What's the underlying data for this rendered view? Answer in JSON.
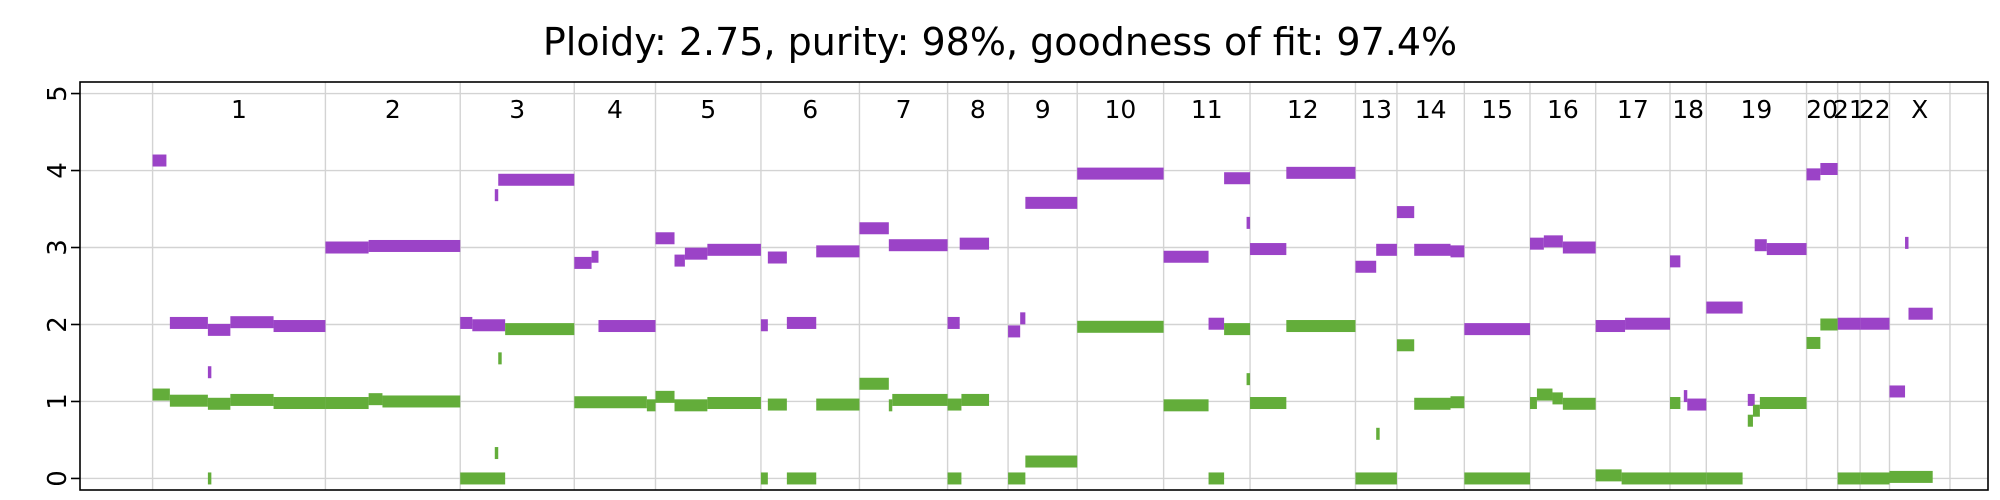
{
  "chart_data": {
    "type": "scatter",
    "title": "Ploidy: 2.75, purity: 98%, goodness of fit: 97.4%",
    "xlabel": "",
    "ylabel": "",
    "ylim": [
      -0.15,
      5.15
    ],
    "yticks": [
      0,
      1,
      2,
      3,
      4,
      5
    ],
    "grid": true,
    "colors": {
      "major": "#9b43c7",
      "minor": "#63ad3a",
      "grid": "#d3d3d3",
      "axis": "#000000"
    },
    "chromosomes": [
      {
        "name": "1",
        "start": 0.0,
        "end": 1.0
      },
      {
        "name": "2",
        "start": 1.0,
        "end": 1.78
      },
      {
        "name": "3",
        "start": 1.78,
        "end": 2.44
      },
      {
        "name": "4",
        "start": 2.44,
        "end": 2.91
      },
      {
        "name": "5",
        "start": 2.91,
        "end": 3.52
      },
      {
        "name": "6",
        "start": 3.52,
        "end": 4.09
      },
      {
        "name": "7",
        "start": 4.09,
        "end": 4.6
      },
      {
        "name": "8",
        "start": 4.6,
        "end": 4.95
      },
      {
        "name": "9",
        "start": 4.95,
        "end": 5.35
      },
      {
        "name": "10",
        "start": 5.35,
        "end": 5.85
      },
      {
        "name": "11",
        "start": 5.85,
        "end": 6.35
      },
      {
        "name": "12",
        "start": 6.35,
        "end": 6.96
      },
      {
        "name": "13",
        "start": 6.96,
        "end": 7.2
      },
      {
        "name": "14",
        "start": 7.2,
        "end": 7.59
      },
      {
        "name": "15",
        "start": 7.59,
        "end": 7.97
      },
      {
        "name": "16",
        "start": 7.97,
        "end": 8.35
      },
      {
        "name": "17",
        "start": 8.35,
        "end": 8.78
      },
      {
        "name": "18",
        "start": 8.78,
        "end": 8.99
      },
      {
        "name": "19",
        "start": 8.99,
        "end": 9.57
      },
      {
        "name": "20",
        "start": 9.57,
        "end": 9.75
      },
      {
        "name": "21",
        "start": 9.75,
        "end": 9.88
      },
      {
        "name": "22",
        "start": 9.88,
        "end": 10.05
      },
      {
        "name": "X",
        "start": 10.05,
        "end": 10.4
      }
    ],
    "xlim": [
      -0.42,
      10.62
    ],
    "series": [
      {
        "key": "major",
        "segments": [
          [
            0.0,
            0.08,
            4.13
          ],
          [
            0.1,
            0.32,
            2.02
          ],
          [
            0.32,
            0.45,
            1.93
          ],
          [
            0.45,
            0.7,
            2.03
          ],
          [
            0.7,
            1.0,
            1.98
          ],
          [
            0.32,
            0.34,
            1.38
          ],
          [
            1.0,
            1.25,
            3.0
          ],
          [
            1.25,
            1.78,
            3.02
          ],
          [
            1.78,
            1.85,
            2.02
          ],
          [
            1.85,
            2.04,
            1.99
          ],
          [
            1.98,
            2.0,
            3.68
          ],
          [
            2.0,
            2.44,
            3.88
          ],
          [
            2.44,
            2.54,
            2.8
          ],
          [
            2.54,
            2.58,
            2.88
          ],
          [
            2.58,
            2.91,
            1.98
          ],
          [
            2.91,
            3.02,
            3.12
          ],
          [
            3.02,
            3.08,
            2.83
          ],
          [
            3.08,
            3.21,
            2.92
          ],
          [
            3.21,
            3.52,
            2.97
          ],
          [
            3.52,
            3.56,
            1.99
          ],
          [
            3.56,
            3.67,
            2.87
          ],
          [
            3.67,
            3.84,
            2.02
          ],
          [
            3.84,
            4.09,
            2.95
          ],
          [
            4.09,
            4.26,
            3.25
          ],
          [
            4.26,
            4.6,
            3.03
          ],
          [
            4.6,
            4.67,
            2.02
          ],
          [
            4.67,
            4.84,
            3.05
          ],
          [
            4.95,
            5.02,
            1.91
          ],
          [
            5.02,
            5.05,
            2.08
          ],
          [
            5.05,
            5.35,
            3.58
          ],
          [
            5.35,
            5.85,
            3.96
          ],
          [
            5.85,
            6.11,
            2.88
          ],
          [
            6.11,
            6.2,
            2.01
          ],
          [
            6.2,
            6.35,
            3.9
          ],
          [
            6.33,
            6.35,
            3.32
          ],
          [
            6.35,
            6.56,
            2.98
          ],
          [
            6.56,
            6.96,
            3.97
          ],
          [
            6.96,
            7.08,
            2.75
          ],
          [
            7.08,
            7.2,
            2.97
          ],
          [
            7.2,
            7.3,
            3.46
          ],
          [
            7.3,
            7.51,
            2.97
          ],
          [
            7.51,
            7.59,
            2.95
          ],
          [
            7.59,
            7.97,
            1.94
          ],
          [
            7.97,
            8.05,
            3.05
          ],
          [
            8.05,
            8.16,
            3.08
          ],
          [
            8.16,
            8.35,
            3.0
          ],
          [
            8.35,
            8.52,
            1.98
          ],
          [
            8.52,
            8.78,
            2.01
          ],
          [
            8.78,
            8.84,
            2.82
          ],
          [
            8.86,
            8.88,
            1.07
          ],
          [
            8.88,
            8.99,
            0.96
          ],
          [
            8.99,
            9.2,
            2.22
          ],
          [
            9.23,
            9.27,
            1.02
          ],
          [
            9.27,
            9.34,
            3.03
          ],
          [
            9.34,
            9.57,
            2.98
          ],
          [
            9.57,
            9.65,
            3.95
          ],
          [
            9.65,
            9.75,
            4.02
          ],
          [
            9.75,
            9.88,
            2.01
          ],
          [
            9.88,
            10.05,
            2.01
          ],
          [
            10.05,
            10.14,
            1.13
          ],
          [
            10.14,
            10.16,
            3.06
          ],
          [
            10.16,
            10.3,
            2.14
          ]
        ]
      },
      {
        "key": "minor",
        "segments": [
          [
            0.0,
            0.1,
            1.09
          ],
          [
            0.1,
            0.32,
            1.01
          ],
          [
            0.32,
            0.45,
            0.97
          ],
          [
            0.45,
            0.7,
            1.02
          ],
          [
            0.7,
            1.0,
            0.98
          ],
          [
            0.32,
            0.34,
            0.0
          ],
          [
            1.0,
            1.25,
            0.98
          ],
          [
            1.25,
            1.33,
            1.03
          ],
          [
            1.33,
            1.78,
            1.0
          ],
          [
            1.78,
            2.04,
            0.0
          ],
          [
            1.98,
            2.0,
            0.33
          ],
          [
            2.0,
            2.02,
            1.56
          ],
          [
            2.04,
            2.44,
            1.94
          ],
          [
            2.44,
            2.86,
            0.99
          ],
          [
            2.86,
            2.91,
            0.95
          ],
          [
            2.91,
            3.02,
            1.06
          ],
          [
            3.02,
            3.21,
            0.95
          ],
          [
            3.21,
            3.52,
            0.98
          ],
          [
            3.52,
            3.56,
            0.0
          ],
          [
            3.56,
            3.67,
            0.96
          ],
          [
            3.67,
            3.84,
            0.0
          ],
          [
            3.84,
            4.09,
            0.96
          ],
          [
            4.09,
            4.26,
            1.23
          ],
          [
            4.26,
            4.28,
            0.95
          ],
          [
            4.28,
            4.6,
            1.02
          ],
          [
            4.6,
            4.68,
            0.0
          ],
          [
            4.6,
            4.68,
            0.96
          ],
          [
            4.68,
            4.84,
            1.02
          ],
          [
            4.95,
            5.05,
            0.0
          ],
          [
            5.05,
            5.35,
            0.22
          ],
          [
            5.35,
            5.85,
            1.97
          ],
          [
            5.85,
            6.11,
            0.95
          ],
          [
            6.11,
            6.2,
            0.0
          ],
          [
            6.2,
            6.35,
            1.94
          ],
          [
            6.33,
            6.35,
            1.29
          ],
          [
            6.35,
            6.56,
            0.98
          ],
          [
            6.56,
            6.96,
            1.98
          ],
          [
            6.96,
            7.2,
            0.0
          ],
          [
            7.08,
            7.1,
            0.58
          ],
          [
            7.2,
            7.3,
            1.73
          ],
          [
            7.3,
            7.51,
            0.97
          ],
          [
            7.51,
            7.59,
            0.99
          ],
          [
            7.59,
            7.97,
            0.0
          ],
          [
            7.97,
            8.01,
            0.98
          ],
          [
            8.01,
            8.1,
            1.09
          ],
          [
            8.1,
            8.16,
            1.04
          ],
          [
            8.16,
            8.35,
            0.97
          ],
          [
            8.35,
            8.5,
            0.04
          ],
          [
            8.5,
            8.78,
            0.0
          ],
          [
            8.78,
            8.99,
            0.0
          ],
          [
            8.78,
            8.84,
            0.98
          ],
          [
            8.99,
            9.2,
            0.0
          ],
          [
            9.23,
            9.26,
            0.75
          ],
          [
            9.26,
            9.3,
            0.88
          ],
          [
            9.3,
            9.57,
            0.98
          ],
          [
            9.57,
            9.65,
            1.76
          ],
          [
            9.65,
            9.75,
            2.0
          ],
          [
            9.75,
            9.88,
            0.0
          ],
          [
            9.88,
            10.05,
            0.0
          ],
          [
            10.05,
            10.3,
            0.02
          ]
        ]
      }
    ]
  }
}
